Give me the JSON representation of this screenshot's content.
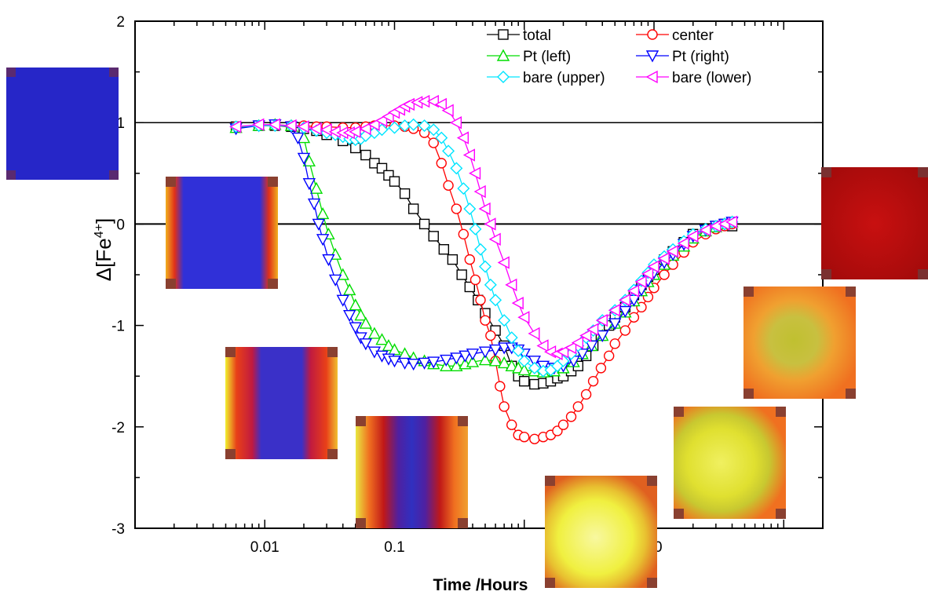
{
  "chart_data": {
    "type": "scatter",
    "xlabel": "Time /Hours",
    "ylabel_main": "Δ[Fe",
    "ylabel_sup": "4+",
    "ylabel_end": "]",
    "x_scale": "log",
    "xlim": [
      0.001,
      200
    ],
    "ylim": [
      -3,
      2
    ],
    "x_ticks": [
      {
        "v": 0.01,
        "label": "0.01"
      },
      {
        "v": 0.1,
        "label": "0.1"
      },
      {
        "v": 10,
        "label": "10"
      }
    ],
    "y_ticks": [
      {
        "v": 2,
        "label": "2"
      },
      {
        "v": 1,
        "label": "1"
      },
      {
        "v": 0,
        "label": "0"
      },
      {
        "v": -1,
        "label": "-1"
      },
      {
        "v": -2,
        "label": "-2"
      },
      {
        "v": -3,
        "label": "-3"
      }
    ],
    "reference_lines": [
      1,
      0
    ],
    "legend_position": "top-right",
    "series": [
      {
        "name": "total",
        "color": "#000000",
        "marker": "square",
        "x": [
          0.006,
          0.009,
          0.012,
          0.016,
          0.02,
          0.025,
          0.03,
          0.04,
          0.05,
          0.06,
          0.07,
          0.08,
          0.09,
          0.1,
          0.12,
          0.14,
          0.17,
          0.2,
          0.24,
          0.28,
          0.33,
          0.38,
          0.44,
          0.5,
          0.6,
          0.7,
          0.8,
          0.9,
          1.0,
          1.2,
          1.4,
          1.6,
          1.8,
          2.0,
          2.3,
          2.6,
          3.0,
          3.4,
          3.9,
          4.5,
          5,
          6,
          7,
          8,
          9,
          10,
          12,
          14,
          17,
          20,
          25,
          30,
          35,
          40
        ],
        "y": [
          0.96,
          0.97,
          0.97,
          0.96,
          0.94,
          0.92,
          0.88,
          0.82,
          0.75,
          0.68,
          0.6,
          0.55,
          0.48,
          0.42,
          0.3,
          0.15,
          0.0,
          -0.12,
          -0.25,
          -0.35,
          -0.5,
          -0.62,
          -0.75,
          -0.88,
          -1.05,
          -1.2,
          -1.4,
          -1.5,
          -1.55,
          -1.58,
          -1.57,
          -1.55,
          -1.52,
          -1.5,
          -1.45,
          -1.4,
          -1.3,
          -1.2,
          -1.1,
          -1.0,
          -0.92,
          -0.82,
          -0.7,
          -0.6,
          -0.52,
          -0.45,
          -0.35,
          -0.27,
          -0.18,
          -0.1,
          -0.05,
          -0.02,
          0.0,
          -0.02
        ]
      },
      {
        "name": "center",
        "color": "#ff0000",
        "marker": "circle",
        "x": [
          0.006,
          0.009,
          0.012,
          0.016,
          0.02,
          0.025,
          0.03,
          0.04,
          0.05,
          0.06,
          0.07,
          0.08,
          0.1,
          0.12,
          0.14,
          0.17,
          0.2,
          0.23,
          0.26,
          0.3,
          0.34,
          0.38,
          0.42,
          0.46,
          0.5,
          0.55,
          0.6,
          0.65,
          0.7,
          0.8,
          0.9,
          1.0,
          1.2,
          1.4,
          1.6,
          1.8,
          2.0,
          2.3,
          2.6,
          3.0,
          3.4,
          3.9,
          4.5,
          5,
          6,
          7,
          8,
          9,
          10,
          12,
          14,
          17,
          20,
          25,
          30,
          35,
          40
        ],
        "y": [
          0.96,
          0.97,
          0.97,
          0.97,
          0.97,
          0.96,
          0.96,
          0.95,
          0.95,
          0.96,
          0.97,
          0.97,
          0.97,
          0.96,
          0.94,
          0.9,
          0.8,
          0.6,
          0.38,
          0.15,
          -0.1,
          -0.35,
          -0.55,
          -0.75,
          -0.95,
          -1.1,
          -1.35,
          -1.6,
          -1.8,
          -1.98,
          -2.08,
          -2.1,
          -2.12,
          -2.1,
          -2.08,
          -2.04,
          -1.98,
          -1.9,
          -1.8,
          -1.68,
          -1.55,
          -1.42,
          -1.3,
          -1.18,
          -1.05,
          -0.92,
          -0.82,
          -0.72,
          -0.63,
          -0.5,
          -0.4,
          -0.28,
          -0.18,
          -0.1,
          -0.05,
          -0.02,
          0.0
        ]
      },
      {
        "name": "Pt (left)",
        "color": "#00dd00",
        "marker": "triangle-up",
        "x": [
          0.006,
          0.009,
          0.012,
          0.016,
          0.02,
          0.022,
          0.025,
          0.028,
          0.031,
          0.035,
          0.04,
          0.045,
          0.05,
          0.055,
          0.06,
          0.07,
          0.08,
          0.09,
          0.1,
          0.12,
          0.14,
          0.17,
          0.2,
          0.25,
          0.3,
          0.35,
          0.4,
          0.5,
          0.6,
          0.7,
          0.8,
          0.9,
          1.0,
          1.2,
          1.4,
          1.7,
          2.0,
          2.4,
          2.8,
          3.3,
          4,
          5,
          6,
          7,
          8,
          9,
          10,
          12,
          14,
          17,
          20,
          25,
          30,
          35,
          40
        ],
        "y": [
          0.95,
          0.97,
          0.98,
          0.97,
          0.85,
          0.62,
          0.35,
          0.1,
          -0.1,
          -0.3,
          -0.5,
          -0.65,
          -0.8,
          -0.9,
          -0.98,
          -1.08,
          -1.14,
          -1.2,
          -1.24,
          -1.28,
          -1.32,
          -1.35,
          -1.38,
          -1.4,
          -1.4,
          -1.38,
          -1.36,
          -1.34,
          -1.35,
          -1.37,
          -1.4,
          -1.42,
          -1.44,
          -1.45,
          -1.46,
          -1.45,
          -1.42,
          -1.36,
          -1.28,
          -1.2,
          -1.1,
          -0.98,
          -0.87,
          -0.76,
          -0.66,
          -0.57,
          -0.5,
          -0.4,
          -0.31,
          -0.22,
          -0.14,
          -0.07,
          -0.03,
          0.0,
          0.02
        ]
      },
      {
        "name": "Pt (right)",
        "color": "#0000ff",
        "marker": "triangle-down",
        "x": [
          0.006,
          0.009,
          0.012,
          0.016,
          0.018,
          0.02,
          0.022,
          0.024,
          0.026,
          0.028,
          0.031,
          0.035,
          0.04,
          0.045,
          0.05,
          0.055,
          0.06,
          0.07,
          0.08,
          0.09,
          0.1,
          0.12,
          0.14,
          0.17,
          0.2,
          0.25,
          0.3,
          0.35,
          0.4,
          0.5,
          0.6,
          0.7,
          0.8,
          0.9,
          1.0,
          1.2,
          1.4,
          1.7,
          2.0,
          2.4,
          2.8,
          3.3,
          4,
          5,
          6,
          7,
          8,
          9,
          10,
          12,
          14,
          17,
          20,
          25,
          30,
          35,
          40
        ],
        "y": [
          0.94,
          0.97,
          0.98,
          0.96,
          0.85,
          0.65,
          0.4,
          0.2,
          0.0,
          -0.15,
          -0.35,
          -0.55,
          -0.75,
          -0.9,
          -1.02,
          -1.12,
          -1.18,
          -1.26,
          -1.3,
          -1.33,
          -1.35,
          -1.37,
          -1.38,
          -1.37,
          -1.36,
          -1.34,
          -1.32,
          -1.3,
          -1.28,
          -1.26,
          -1.24,
          -1.22,
          -1.22,
          -1.24,
          -1.28,
          -1.35,
          -1.4,
          -1.42,
          -1.4,
          -1.35,
          -1.28,
          -1.2,
          -1.1,
          -0.98,
          -0.86,
          -0.75,
          -0.65,
          -0.56,
          -0.48,
          -0.38,
          -0.3,
          -0.2,
          -0.12,
          -0.06,
          -0.02,
          0.0,
          0.02
        ]
      },
      {
        "name": "bare (upper)",
        "color": "#00e5ff",
        "marker": "diamond",
        "x": [
          0.006,
          0.009,
          0.012,
          0.016,
          0.02,
          0.025,
          0.03,
          0.035,
          0.04,
          0.045,
          0.05,
          0.055,
          0.06,
          0.07,
          0.08,
          0.1,
          0.12,
          0.14,
          0.17,
          0.2,
          0.23,
          0.26,
          0.3,
          0.34,
          0.38,
          0.42,
          0.46,
          0.5,
          0.55,
          0.6,
          0.7,
          0.8,
          0.9,
          1.0,
          1.2,
          1.4,
          1.6,
          1.8,
          2.0,
          2.3,
          2.6,
          3.0,
          3.4,
          4,
          5,
          6,
          7,
          8,
          9,
          10,
          12,
          14,
          17,
          20,
          25,
          30,
          35,
          40
        ],
        "y": [
          0.96,
          0.97,
          0.97,
          0.97,
          0.95,
          0.92,
          0.9,
          0.88,
          0.86,
          0.84,
          0.83,
          0.84,
          0.87,
          0.9,
          0.93,
          0.95,
          0.97,
          0.98,
          0.97,
          0.93,
          0.85,
          0.72,
          0.55,
          0.35,
          0.15,
          -0.05,
          -0.25,
          -0.42,
          -0.6,
          -0.75,
          -0.95,
          -1.12,
          -1.25,
          -1.35,
          -1.42,
          -1.45,
          -1.44,
          -1.4,
          -1.35,
          -1.28,
          -1.2,
          -1.12,
          -1.05,
          -0.95,
          -0.85,
          -0.75,
          -0.65,
          -0.56,
          -0.48,
          -0.4,
          -0.32,
          -0.25,
          -0.17,
          -0.1,
          -0.05,
          -0.02,
          0.0,
          0.02
        ]
      },
      {
        "name": "bare (lower)",
        "color": "#ff00ff",
        "marker": "triangle-left",
        "x": [
          0.006,
          0.009,
          0.012,
          0.016,
          0.02,
          0.025,
          0.03,
          0.035,
          0.04,
          0.045,
          0.05,
          0.06,
          0.07,
          0.08,
          0.09,
          0.1,
          0.11,
          0.12,
          0.13,
          0.15,
          0.17,
          0.2,
          0.23,
          0.26,
          0.3,
          0.34,
          0.38,
          0.42,
          0.46,
          0.5,
          0.55,
          0.6,
          0.7,
          0.8,
          0.9,
          1.0,
          1.2,
          1.4,
          1.6,
          1.8,
          2.0,
          2.3,
          2.6,
          3.0,
          3.4,
          4,
          5,
          6,
          7,
          8,
          9,
          10,
          12,
          14,
          17,
          20,
          25,
          30,
          35,
          40
        ],
        "y": [
          0.96,
          0.98,
          0.98,
          0.97,
          0.96,
          0.94,
          0.93,
          0.91,
          0.9,
          0.9,
          0.91,
          0.94,
          0.98,
          1.02,
          1.06,
          1.1,
          1.13,
          1.16,
          1.18,
          1.2,
          1.21,
          1.21,
          1.18,
          1.12,
          1.0,
          0.85,
          0.68,
          0.5,
          0.32,
          0.15,
          0.0,
          -0.15,
          -0.38,
          -0.6,
          -0.78,
          -0.92,
          -1.08,
          -1.2,
          -1.26,
          -1.28,
          -1.26,
          -1.22,
          -1.17,
          -1.1,
          -1.04,
          -0.95,
          -0.85,
          -0.75,
          -0.66,
          -0.57,
          -0.49,
          -0.42,
          -0.34,
          -0.27,
          -0.19,
          -0.12,
          -0.06,
          -0.02,
          0.0,
          0.02
        ]
      }
    ],
    "inset_images": [
      {
        "name": "map-1",
        "colors": [
          "#2222cc",
          "#3a1aa0"
        ]
      },
      {
        "name": "map-2",
        "colors": [
          "#2a2acc",
          "#d04020"
        ]
      },
      {
        "name": "map-3",
        "colors": [
          "#2a2aa0",
          "#e04020"
        ]
      },
      {
        "name": "map-4",
        "colors": [
          "#2a2ab0",
          "#c01818"
        ]
      },
      {
        "name": "map-5",
        "colors": [
          "#f0f050",
          "#e05020"
        ]
      },
      {
        "name": "map-6",
        "colors": [
          "#e8e840",
          "#e06020"
        ]
      },
      {
        "name": "map-7",
        "colors": [
          "#c8c830",
          "#f08020"
        ]
      },
      {
        "name": "map-8",
        "colors": [
          "#c01010",
          "#a00808"
        ]
      }
    ]
  }
}
